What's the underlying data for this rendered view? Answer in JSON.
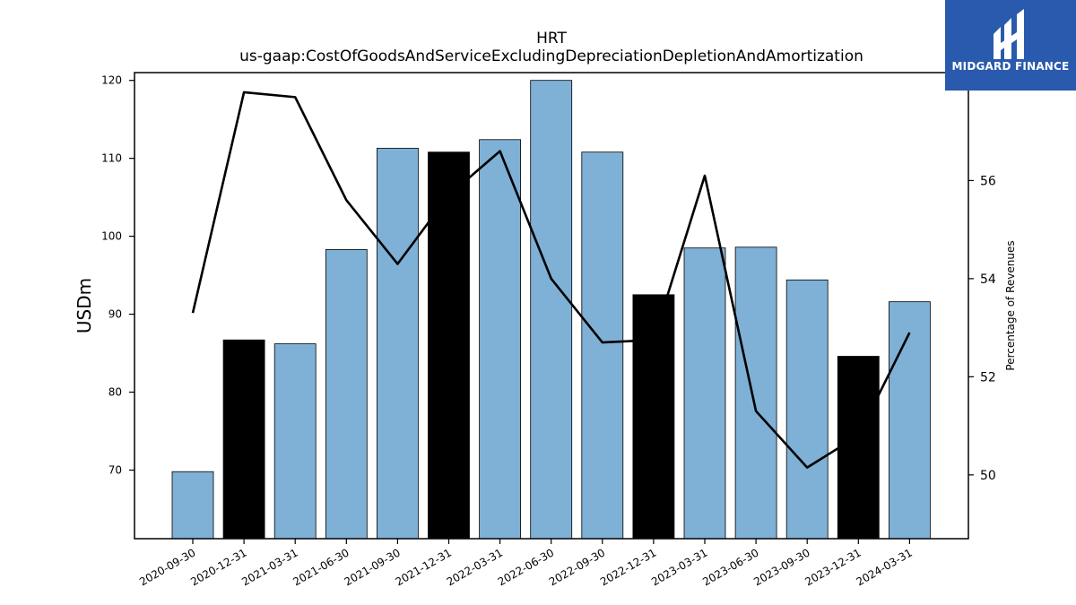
{
  "chart_data": {
    "type": "bar",
    "title": "HRT",
    "subtitle": "us-gaap:CostOfGoodsAndServiceExcludingDepreciationDepletionAndAmortization",
    "ylabel": "USDm",
    "y2label": "Percentage of Revenues",
    "categories": [
      "2020-09-30",
      "2020-12-31",
      "2021-03-31",
      "2021-06-30",
      "2021-09-30",
      "2021-12-31",
      "2022-03-31",
      "2022-06-30",
      "2022-09-30",
      "2022-12-31",
      "2023-03-31",
      "2023-06-30",
      "2023-09-30",
      "2023-12-31",
      "2024-03-31"
    ],
    "bars": {
      "values": [
        69.8,
        86.7,
        86.2,
        98.3,
        111.3,
        110.8,
        112.4,
        120.0,
        110.8,
        92.5,
        98.5,
        98.6,
        94.4,
        84.6,
        91.6
      ],
      "highlight": [
        false,
        true,
        false,
        false,
        false,
        true,
        false,
        false,
        false,
        true,
        false,
        false,
        false,
        true,
        false
      ],
      "color": "#7fb0d5",
      "highlight_color": "#000000"
    },
    "line": {
      "values": [
        53.3,
        57.8,
        57.7,
        55.6,
        54.3,
        55.7,
        56.6,
        54.0,
        52.7,
        52.75,
        56.1,
        51.3,
        50.15,
        50.8,
        52.9
      ],
      "color": "#000000"
    },
    "ylim": [
      61.2,
      121.0
    ],
    "yticks": [
      70,
      80,
      90,
      100,
      110,
      120
    ],
    "y2lim": [
      48.7,
      58.2
    ],
    "y2ticks": [
      50,
      52,
      54,
      56
    ],
    "grid": false
  },
  "logo": {
    "text": "MIDGARD FINANCE",
    "icon": "midgard-logo-icon",
    "background": "#2a5aad"
  }
}
